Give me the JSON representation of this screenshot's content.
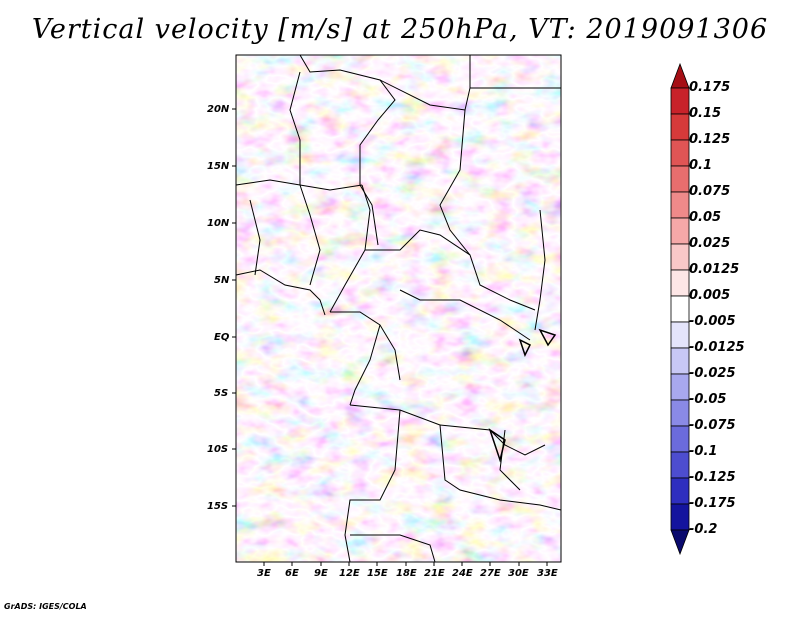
{
  "title": "Vertical velocity [m/s] at 250hPa, VT: 2019091306",
  "credit": "GrADS: IGES/COLA",
  "map": {
    "lat_labels": [
      "20N",
      "15N",
      "10N",
      "5N",
      "EQ",
      "5S",
      "10S",
      "15S"
    ],
    "lon_labels": [
      "3E",
      "6E",
      "9E",
      "12E",
      "15E",
      "18E",
      "21E",
      "24E",
      "27E",
      "30E",
      "33E"
    ],
    "lon_range": [
      0,
      34
    ],
    "lat_range": [
      -20,
      25
    ]
  },
  "colorbar": {
    "labels": [
      "0.175",
      "0.15",
      "0.125",
      "0.1",
      "0.075",
      "0.05",
      "0.025",
      "0.0125",
      "0.005",
      "-0.005",
      "-0.0125",
      "-0.025",
      "-0.05",
      "-0.075",
      "-0.1",
      "-0.125",
      "-0.175",
      "-0.2"
    ],
    "colors": [
      "#a50f15",
      "#c8222a",
      "#d63a3a",
      "#e05555",
      "#e86e6e",
      "#ef8a8a",
      "#f5a8a8",
      "#f9c8c8",
      "#fde6e6",
      "#ffffff",
      "#e4e4fb",
      "#c8c8f5",
      "#a8a8ee",
      "#8a8ae6",
      "#6b6bdc",
      "#4d4dcf",
      "#2e2ebf",
      "#14149e",
      "#0a0a6e"
    ]
  }
}
